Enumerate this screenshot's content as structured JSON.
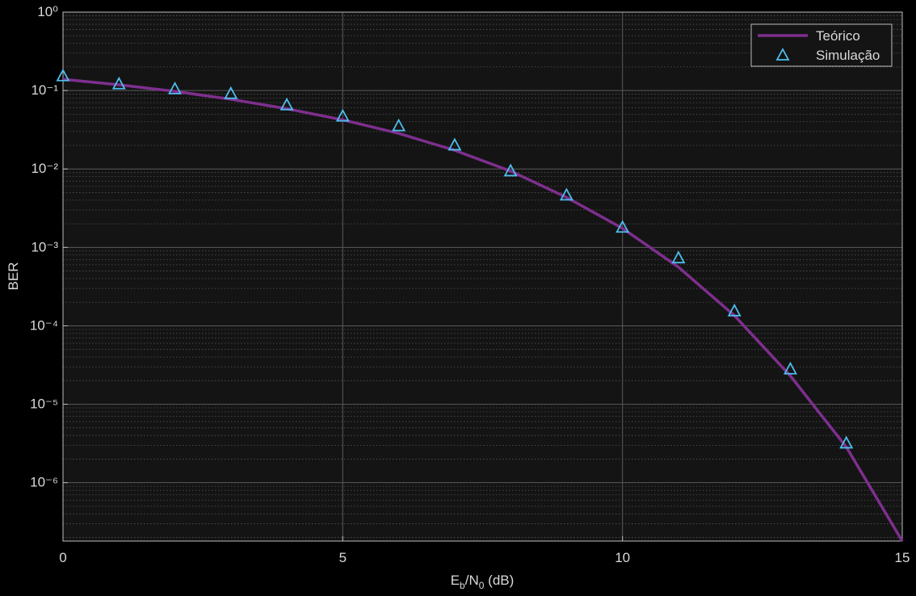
{
  "chart_data": {
    "type": "line",
    "xlabel": "Eb/N0  (dB)",
    "ylabel": "BER",
    "log_y": true,
    "grid": true,
    "minor_grid": true,
    "legend": "top-right",
    "x": [
      0,
      1,
      2,
      3,
      4,
      5,
      6,
      7,
      8,
      9,
      10,
      11,
      12,
      13,
      14,
      15
    ],
    "series": [
      {
        "name": "Teórico",
        "color": "#7e2f8e",
        "marker": "none",
        "values": [
          0.1392,
          0.1183,
          0.0977,
          0.0774,
          0.0586,
          0.0423,
          0.0284,
          0.0173,
          0.00939,
          0.00434,
          0.00175,
          0.00056,
          0.000135,
          2.3e-05,
          2.85e-06,
          1.8e-07
        ]
      },
      {
        "name": "Simulação",
        "color": "#4dbeee",
        "marker": "triangle",
        "values": [
          0.151,
          0.119,
          0.103,
          0.0897,
          0.0644,
          0.0463,
          0.0348,
          0.0198,
          0.00927,
          0.00456,
          0.00177,
          0.00072,
          0.000152,
          2.76e-05,
          3.14e-06,
          null
        ]
      }
    ],
    "xlim": [
      0,
      15
    ],
    "xticks": [
      0,
      5,
      10,
      15
    ],
    "ylim": [
      1.8e-07,
      1
    ],
    "yticks": [
      {
        "value": 1e-06,
        "label": "10⁻⁶"
      },
      {
        "value": 1e-05,
        "label": "10⁻⁵"
      },
      {
        "value": 0.0001,
        "label": "10⁻⁴"
      },
      {
        "value": 0.001,
        "label": "10⁻³"
      },
      {
        "value": 0.01,
        "label": "10⁻²"
      },
      {
        "value": 0.1,
        "label": "10⁻¹"
      },
      {
        "value": 1,
        "label": "10⁰"
      }
    ]
  }
}
